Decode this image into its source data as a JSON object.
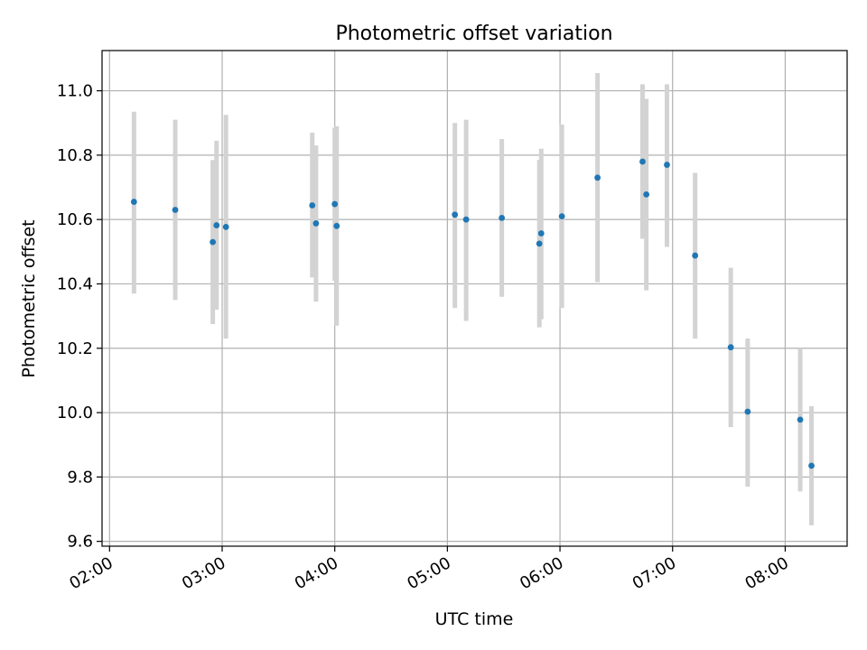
{
  "chart_data": {
    "type": "scatter",
    "title": "Photometric offset variation",
    "xlabel": "UTC time",
    "ylabel": "Photometric offset",
    "xlim": [
      "01:56",
      "08:33"
    ],
    "ylim": [
      9.585,
      11.125
    ],
    "x_ticks": [
      "02:00",
      "03:00",
      "04:00",
      "05:00",
      "06:00",
      "07:00",
      "08:00"
    ],
    "y_ticks": [
      "9.6",
      "9.8",
      "10.0",
      "10.2",
      "10.4",
      "10.6",
      "10.8",
      "11.0"
    ],
    "grid": true,
    "legend": "none",
    "colors": {
      "point": "#1f77b4",
      "errorbar": "#d3d3d3",
      "grid": "#b0b0b0"
    },
    "points": [
      {
        "t": "02:13",
        "y": 10.655,
        "err_low": 10.37,
        "err_high": 10.935
      },
      {
        "t": "02:35",
        "y": 10.63,
        "err_low": 10.35,
        "err_high": 10.91
      },
      {
        "t": "02:55",
        "y": 10.53,
        "err_low": 10.275,
        "err_high": 10.785
      },
      {
        "t": "02:57",
        "y": 10.582,
        "err_low": 10.32,
        "err_high": 10.845
      },
      {
        "t": "03:02",
        "y": 10.577,
        "err_low": 10.23,
        "err_high": 10.925
      },
      {
        "t": "03:48",
        "y": 10.644,
        "err_low": 10.42,
        "err_high": 10.87
      },
      {
        "t": "03:50",
        "y": 10.588,
        "err_low": 10.345,
        "err_high": 10.83
      },
      {
        "t": "04:00",
        "y": 10.648,
        "err_low": 10.41,
        "err_high": 10.885
      },
      {
        "t": "04:01",
        "y": 10.58,
        "err_low": 10.27,
        "err_high": 10.89
      },
      {
        "t": "05:04",
        "y": 10.615,
        "err_low": 10.325,
        "err_high": 10.9
      },
      {
        "t": "05:10",
        "y": 10.6,
        "err_low": 10.285,
        "err_high": 10.91
      },
      {
        "t": "05:29",
        "y": 10.605,
        "err_low": 10.36,
        "err_high": 10.85
      },
      {
        "t": "05:49",
        "y": 10.525,
        "err_low": 10.265,
        "err_high": 10.785
      },
      {
        "t": "05:50",
        "y": 10.557,
        "err_low": 10.29,
        "err_high": 10.82
      },
      {
        "t": "06:01",
        "y": 10.61,
        "err_low": 10.325,
        "err_high": 10.895
      },
      {
        "t": "06:20",
        "y": 10.73,
        "err_low": 10.405,
        "err_high": 11.055
      },
      {
        "t": "06:44",
        "y": 10.78,
        "err_low": 10.54,
        "err_high": 11.02
      },
      {
        "t": "06:46",
        "y": 10.678,
        "err_low": 10.38,
        "err_high": 10.975
      },
      {
        "t": "06:57",
        "y": 10.77,
        "err_low": 10.515,
        "err_high": 11.02
      },
      {
        "t": "07:12",
        "y": 10.488,
        "err_low": 10.23,
        "err_high": 10.745
      },
      {
        "t": "07:31",
        "y": 10.203,
        "err_low": 9.955,
        "err_high": 10.45
      },
      {
        "t": "07:40",
        "y": 10.003,
        "err_low": 9.77,
        "err_high": 10.23
      },
      {
        "t": "08:08",
        "y": 9.978,
        "err_low": 9.755,
        "err_high": 10.2
      },
      {
        "t": "08:14",
        "y": 9.835,
        "err_low": 9.65,
        "err_high": 10.02
      }
    ]
  }
}
